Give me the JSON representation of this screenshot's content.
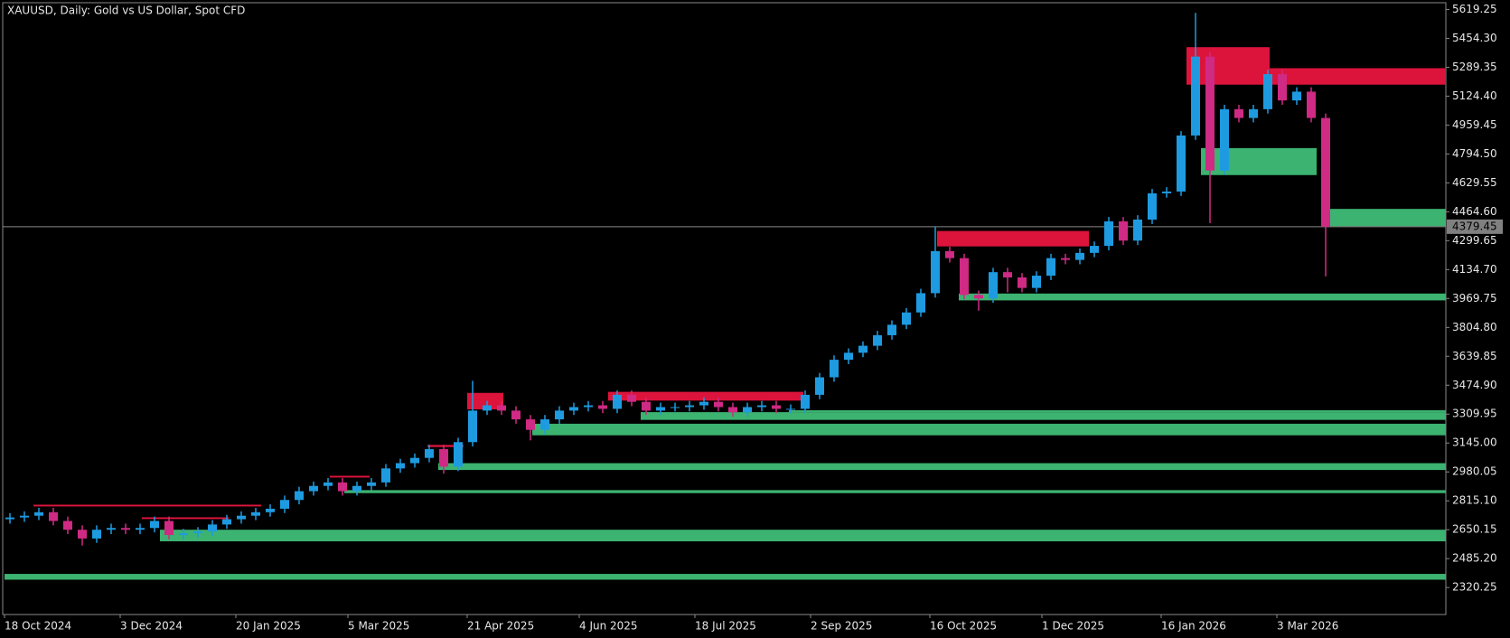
{
  "chart_data": {
    "type": "candlestick",
    "title": "XAUUSD, Daily:  Gold vs US Dollar, Spot CFD",
    "up_color": "#1e9be0",
    "down_color": "#cf2a84",
    "open": [
      2710,
      2720,
      2730,
      2750,
      2700,
      2650,
      2600,
      2650,
      2660,
      2650,
      2660,
      2700,
      2620,
      2630,
      2640,
      2680,
      2710,
      2730,
      2750,
      2770,
      2820,
      2870,
      2900,
      2920,
      2870,
      2900,
      2920,
      3000,
      3030,
      3060,
      3110,
      3010,
      3150,
      3330,
      3360,
      3330,
      3280,
      3220,
      3280,
      3330,
      3350,
      3360,
      3340,
      3420,
      3380,
      3330,
      3350,
      3350,
      3360,
      3380,
      3350,
      3320,
      3350,
      3360,
      3340,
      3340,
      3420,
      3520,
      3620,
      3660,
      3700,
      3760,
      3820,
      3890,
      4000,
      4240,
      4200,
      3990,
      3970,
      4120,
      4090,
      4030,
      4100,
      4200,
      4190,
      4230,
      4270,
      4410,
      4300,
      4420,
      4570,
      4580,
      4900,
      5350,
      4700,
      5050,
      5000,
      5050,
      5250,
      5100,
      5150,
      5000
    ],
    "high": [
      2745,
      2755,
      2775,
      2775,
      2725,
      2675,
      2675,
      2685,
      2685,
      2685,
      2725,
      2725,
      2655,
      2665,
      2705,
      2735,
      2755,
      2775,
      2795,
      2845,
      2895,
      2925,
      2945,
      2945,
      2925,
      2945,
      3025,
      3055,
      3085,
      3135,
      3135,
      3175,
      3500,
      3385,
      3385,
      3355,
      3305,
      3305,
      3355,
      3375,
      3385,
      3385,
      3445,
      3445,
      3405,
      3375,
      3375,
      3385,
      3405,
      3405,
      3375,
      3375,
      3385,
      3385,
      3365,
      3445,
      3545,
      3645,
      3685,
      3725,
      3785,
      3845,
      3915,
      4025,
      4380,
      4265,
      4225,
      4015,
      4145,
      4145,
      4115,
      4125,
      4225,
      4225,
      4255,
      4295,
      4435,
      4435,
      4445,
      4595,
      4605,
      4925,
      5600,
      5375,
      5075,
      5075,
      5075,
      5275,
      5275,
      5175,
      5175,
      5025
    ],
    "low": [
      2685,
      2695,
      2705,
      2675,
      2625,
      2560,
      2575,
      2625,
      2625,
      2625,
      2635,
      2595,
      2595,
      2605,
      2615,
      2655,
      2685,
      2705,
      2725,
      2745,
      2795,
      2845,
      2875,
      2845,
      2845,
      2875,
      2895,
      2975,
      3005,
      3035,
      2970,
      2985,
      3125,
      3305,
      3305,
      3255,
      3160,
      3195,
      3255,
      3305,
      3325,
      3315,
      3315,
      3355,
      3305,
      3305,
      3325,
      3325,
      3335,
      3325,
      3295,
      3295,
      3325,
      3315,
      3315,
      3315,
      3395,
      3495,
      3595,
      3635,
      3675,
      3735,
      3795,
      3865,
      3975,
      4175,
      3965,
      3900,
      3945,
      4005,
      4005,
      4005,
      4075,
      4165,
      4165,
      4205,
      4245,
      4275,
      4275,
      4395,
      4545,
      4555,
      4875,
      4400,
      4675,
      4975,
      4975,
      5025,
      5075,
      5075,
      4975,
      4096
    ],
    "close": [
      2720,
      2730,
      2750,
      2700,
      2650,
      2600,
      2650,
      2660,
      2650,
      2660,
      2700,
      2620,
      2630,
      2640,
      2680,
      2710,
      2730,
      2750,
      2770,
      2820,
      2870,
      2900,
      2920,
      2870,
      2900,
      2920,
      3000,
      3030,
      3060,
      3110,
      3010,
      3150,
      3330,
      3360,
      3330,
      3280,
      3220,
      3280,
      3330,
      3350,
      3360,
      3340,
      3420,
      3380,
      3330,
      3350,
      3350,
      3360,
      3380,
      3350,
      3320,
      3350,
      3360,
      3340,
      3340,
      3420,
      3520,
      3620,
      3660,
      3700,
      3760,
      3820,
      3890,
      4000,
      4240,
      4200,
      3990,
      3970,
      4120,
      4090,
      4030,
      4100,
      4200,
      4190,
      4230,
      4270,
      4410,
      4300,
      4420,
      4570,
      4580,
      4900,
      5350,
      4700,
      5050,
      5000,
      5050,
      5250,
      5100,
      5150,
      5000,
      4379.45
    ],
    "zones": [
      {
        "from": 327,
        "to": 350,
        "low": 5190,
        "high": 5404,
        "color": "#dc143c"
      },
      {
        "from": 350,
        "to": 398.75,
        "low": 5190,
        "high": 5284,
        "color": "#dc143c"
      },
      {
        "from": 258,
        "to": 300,
        "low": 4267,
        "high": 4355,
        "color": "#dc143c"
      },
      {
        "from": 128,
        "to": 138,
        "low": 3337,
        "high": 3431,
        "color": "#dc143c"
      },
      {
        "from": 167,
        "to": 221,
        "low": 3387,
        "high": 3437,
        "color": "#dc143c"
      },
      {
        "from": 117,
        "to": 127,
        "low": 3122,
        "high": 3134,
        "color": "#dc143c"
      },
      {
        "from": 90,
        "to": 101,
        "low": 2948,
        "high": 2958,
        "color": "#dc143c"
      },
      {
        "from": 8,
        "to": 71,
        "low": 2783,
        "high": 2793,
        "color": "#dc143c"
      },
      {
        "from": 38,
        "to": 62,
        "low": 2711,
        "high": 2721,
        "color": "#dc143c"
      },
      {
        "from": 331,
        "to": 363,
        "low": 4674,
        "high": 4828,
        "color": "#3cb371"
      },
      {
        "from": 366,
        "to": 398.75,
        "low": 4382,
        "high": 4481,
        "color": "#3cb371"
      },
      {
        "from": 264,
        "to": 398.75,
        "low": 3959,
        "high": 3998,
        "color": "#3cb371"
      },
      {
        "from": 217,
        "to": 398.75,
        "low": 3321,
        "high": 3332,
        "color": "#3cb371"
      },
      {
        "from": 176,
        "to": 398.75,
        "low": 3277,
        "high": 3321,
        "color": "#3cb371"
      },
      {
        "from": 146,
        "to": 398.75,
        "low": 3189,
        "high": 3255,
        "color": "#3cb371"
      },
      {
        "from": 120,
        "to": 398.75,
        "low": 2991,
        "high": 3030,
        "color": "#3cb371"
      },
      {
        "from": 94,
        "to": 398.75,
        "low": 2859,
        "high": 2876,
        "color": "#3cb371"
      },
      {
        "from": 43,
        "to": 398.75,
        "low": 2584,
        "high": 2650,
        "color": "#3cb371"
      },
      {
        "from": 0,
        "to": 398.75,
        "low": 2365,
        "high": 2398,
        "color": "#3cb371"
      }
    ],
    "current_price": 4379.45,
    "xlim": [
      -0.5,
      398.75
    ],
    "xticks": [
      {
        "value": 0,
        "label": "18 Oct 2024"
      },
      {
        "value": 32,
        "label": "3 Dec 2024"
      },
      {
        "value": 64,
        "label": "20 Jan 2025"
      },
      {
        "value": 95,
        "label": "5 Mar 2025"
      },
      {
        "value": 128,
        "label": "21 Apr 2025"
      },
      {
        "value": 159,
        "label": "4 Jun 2025"
      },
      {
        "value": 191,
        "label": "18 Jul 2025"
      },
      {
        "value": 223,
        "label": "2 Sep 2025"
      },
      {
        "value": 256,
        "label": "16 Oct 2025"
      },
      {
        "value": 287,
        "label": "1 Dec 2025"
      },
      {
        "value": 320,
        "label": "16 Jan 2026"
      },
      {
        "value": 352,
        "label": "3 Mar 2026"
      }
    ],
    "ylim": [
      2166.3,
      5657.7
    ],
    "yticks": [
      {
        "value": 5619.25,
        "label": "5619.25"
      },
      {
        "value": 5454.3,
        "label": "5454.30"
      },
      {
        "value": 5289.35,
        "label": "5289.35"
      },
      {
        "value": 5124.4,
        "label": "5124.40"
      },
      {
        "value": 4959.45,
        "label": "4959.45"
      },
      {
        "value": 4794.5,
        "label": "4794.50"
      },
      {
        "value": 4629.55,
        "label": "4629.55"
      },
      {
        "value": 4464.6,
        "label": "4464.60"
      },
      {
        "value": 4299.65,
        "label": "4299.65"
      },
      {
        "value": 4134.7,
        "label": "4134.70"
      },
      {
        "value": 3969.75,
        "label": "3969.75"
      },
      {
        "value": 3804.8,
        "label": "3804.80"
      },
      {
        "value": 3639.85,
        "label": "3639.85"
      },
      {
        "value": 3474.9,
        "label": "3474.90"
      },
      {
        "value": 3309.95,
        "label": "3309.95"
      },
      {
        "value": 3145,
        "label": "3145.00"
      },
      {
        "value": 2980.05,
        "label": "2980.05"
      },
      {
        "value": 2815.1,
        "label": "2815.10"
      },
      {
        "value": 2650.15,
        "label": "2650.15"
      },
      {
        "value": 2485.2,
        "label": "2485.20"
      },
      {
        "value": 2320.25,
        "label": "2320.25"
      }
    ]
  }
}
